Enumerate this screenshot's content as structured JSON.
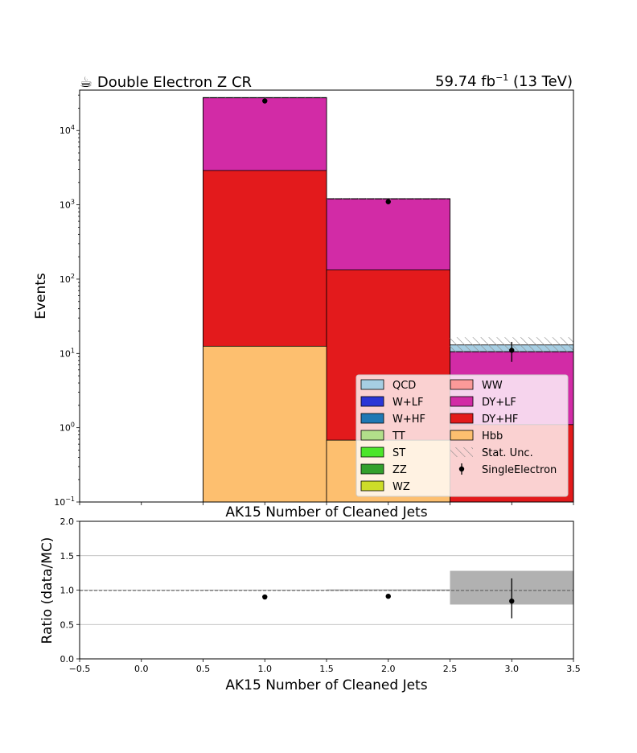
{
  "header": {
    "title": "☕ Double Electron Z CR",
    "lumi": "59.74 fb",
    "lumi_exp": "−1",
    "lumi_tail": " (13 TeV)"
  },
  "chart_data": [
    {
      "type": "bar",
      "subtype": "stacked-histogram-log",
      "ylabel": "Events",
      "xlabel": "AK15 Number of Cleaned Jets",
      "xlim": [
        -0.5,
        3.5
      ],
      "ylim": [
        0.1,
        35000
      ],
      "yscale": "log",
      "ytick_labels": [
        {
          "base": "10",
          "exp": "4",
          "value": 10000
        },
        {
          "base": "10",
          "exp": "3",
          "value": 1000
        },
        {
          "base": "10",
          "exp": "2",
          "value": 100
        },
        {
          "base": "10",
          "exp": "1",
          "value": 10
        },
        {
          "base": "10",
          "exp": "0",
          "value": 1
        },
        {
          "base": "10",
          "exp": "−1",
          "value": 0.1
        }
      ],
      "bin_edges": [
        0.5,
        1.5,
        2.5,
        3.5
      ],
      "stack": [
        {
          "name": "Hbb",
          "color": "#fdbf6f",
          "values": [
            12.5,
            0.68,
            0.1
          ]
        },
        {
          "name": "DY+HF",
          "color": "#e31a1c",
          "values": [
            2900,
            133,
            1.1
          ]
        },
        {
          "name": "DY+LF",
          "color": "#d22ba6",
          "values": [
            27500,
            1200,
            10.5
          ]
        },
        {
          "name": "WW",
          "color": "#fb9a99",
          "values": [
            27500,
            1200,
            10.5
          ]
        },
        {
          "name": "WZ",
          "color": "#cddc29",
          "values": [
            27500,
            1200,
            10.5
          ]
        },
        {
          "name": "ZZ",
          "color": "#33a02c",
          "values": [
            27500,
            1200,
            10.5
          ]
        },
        {
          "name": "ST",
          "color": "#4ce62a",
          "values": [
            27500,
            1200,
            10.5
          ]
        },
        {
          "name": "TT",
          "color": "#b2df8a",
          "values": [
            27500,
            1205,
            10.5
          ]
        },
        {
          "name": "W+HF",
          "color": "#1f78b4",
          "values": [
            27500,
            1205,
            10.5
          ]
        },
        {
          "name": "W+LF",
          "color": "#2a36d6",
          "values": [
            27500,
            1205,
            10.5
          ]
        },
        {
          "name": "QCD",
          "color": "#a6cee3",
          "values": [
            27800,
            1210,
            13.0
          ]
        }
      ],
      "stat_unc": {
        "name": "Stat. Unc.",
        "low": [
          27500,
          1180,
          10.3
        ],
        "high": [
          28200,
          1240,
          16.5
        ]
      },
      "data": {
        "name": "SingleElectron",
        "x": [
          1,
          2,
          3
        ],
        "y": [
          25000,
          1100,
          11
        ],
        "err_low": [
          150,
          33,
          3.3
        ],
        "err_high": [
          150,
          33,
          3.3
        ]
      },
      "legend": {
        "placement": "lower right",
        "col1": [
          {
            "label": "QCD",
            "color": "#a6cee3"
          },
          {
            "label": "W+LF",
            "color": "#2a36d6"
          },
          {
            "label": "W+HF",
            "color": "#1f78b4"
          },
          {
            "label": "TT",
            "color": "#b2df8a"
          },
          {
            "label": "ST",
            "color": "#4ce62a"
          },
          {
            "label": "ZZ",
            "color": "#33a02c"
          },
          {
            "label": "WZ",
            "color": "#cddc29"
          }
        ],
        "col2": [
          {
            "label": "WW",
            "color": "#fb9a99",
            "kind": "patch"
          },
          {
            "label": "DY+LF",
            "color": "#d22ba6",
            "kind": "patch"
          },
          {
            "label": "DY+HF",
            "color": "#e31a1c",
            "kind": "patch"
          },
          {
            "label": "Hbb",
            "color": "#fdbf6f",
            "kind": "patch"
          },
          {
            "label": "Stat. Unc.",
            "color": "#888888",
            "kind": "hatch"
          },
          {
            "label": "SingleElectron",
            "color": "#000000",
            "kind": "errorbar"
          }
        ]
      }
    },
    {
      "type": "scatter",
      "subtype": "ratio",
      "ylabel": "Ratio (data/MC)",
      "xlabel": "AK15 Number of Cleaned Jets",
      "xlim": [
        -0.5,
        3.5
      ],
      "ylim": [
        0.0,
        2.0
      ],
      "grid": "horizontal",
      "xticks": [
        "−0.5",
        "0.0",
        "0.5",
        "1.0",
        "1.5",
        "2.0",
        "2.5",
        "3.0",
        "3.5"
      ],
      "yticks": [
        "0.0",
        "0.5",
        "1.0",
        "1.5",
        "2.0"
      ],
      "reference_line": 1.0,
      "points": {
        "x": [
          1,
          2,
          3
        ],
        "y": [
          0.9,
          0.91,
          0.84
        ],
        "err_low": [
          0.005,
          0.02,
          0.25
        ],
        "err_high": [
          0.005,
          0.02,
          0.33
        ]
      },
      "unc_band": {
        "low": [
          0.995,
          0.99,
          0.79
        ],
        "high": [
          1.005,
          1.01,
          1.28
        ]
      }
    }
  ]
}
